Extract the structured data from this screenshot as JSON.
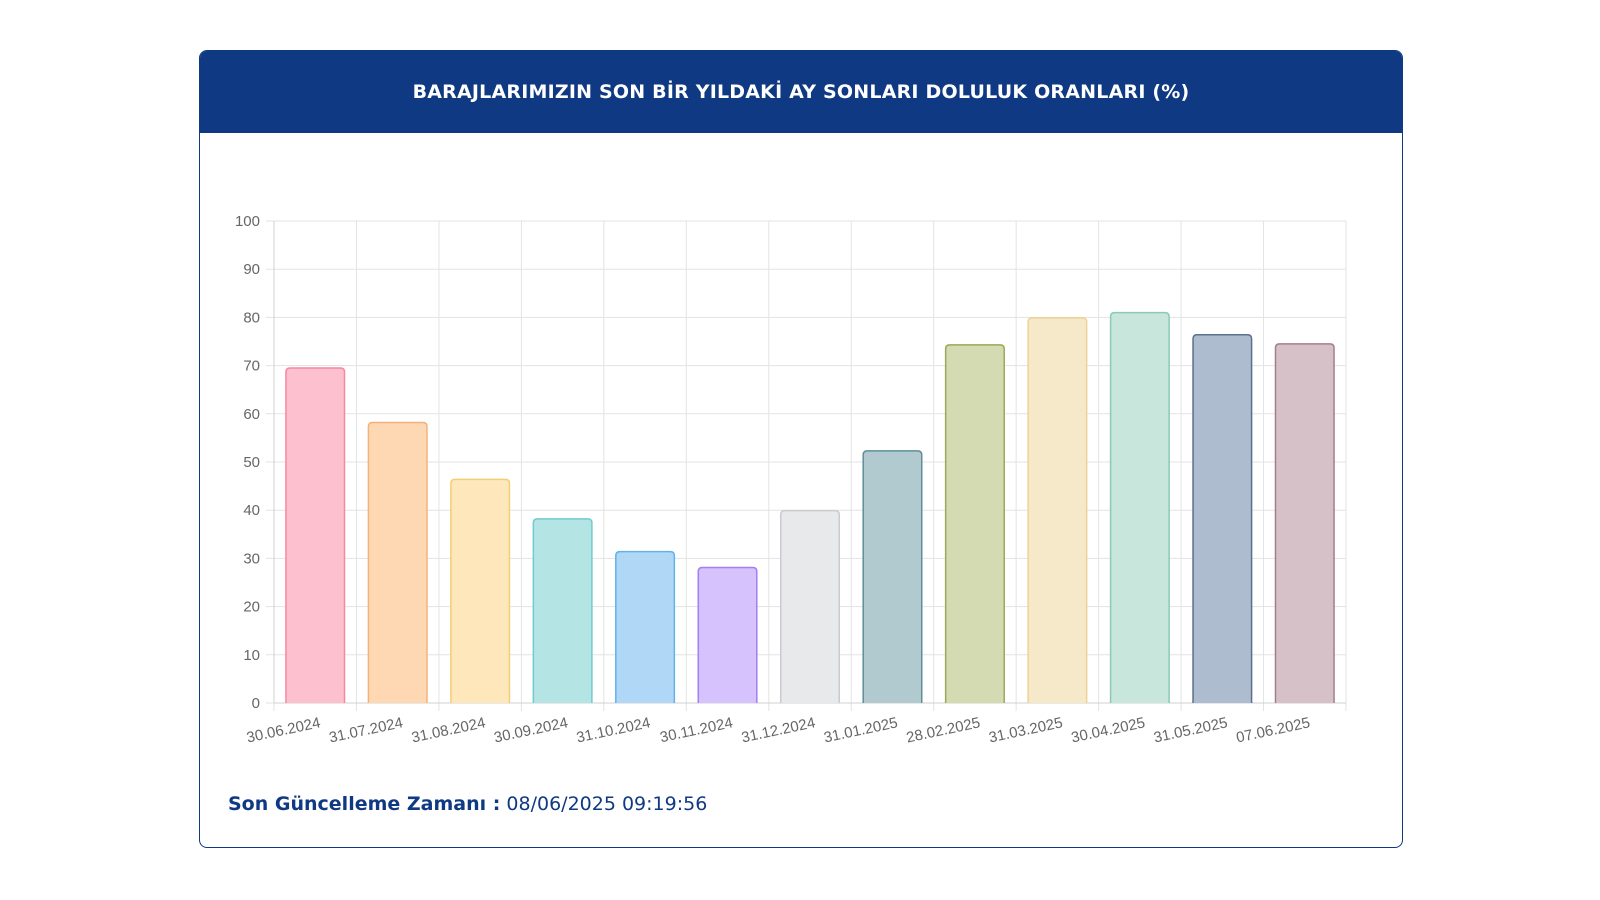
{
  "panel": {
    "title": "BARAJLARIMIZIN SON BİR YILDAKİ AY SONLARI DOLULUK ORANLARI (%)",
    "update_label": "Son Güncelleme Zamanı :",
    "update_value": "08/06/2025 09:19:56"
  },
  "colors": {
    "header_bg": "#0f3982",
    "footer_text": "#0f3982"
  },
  "chart_data": {
    "type": "bar",
    "title": "BARAJLARIMIZIN SON BİR YILDAKİ AY SONLARI DOLULUK ORANLARI (%)",
    "xlabel": "",
    "ylabel": "",
    "ylim": [
      0,
      100
    ],
    "yticks": [
      0,
      10,
      20,
      30,
      40,
      50,
      60,
      70,
      80,
      90,
      100
    ],
    "grid": true,
    "legend": "none",
    "categories": [
      "30.06.2024",
      "31.07.2024",
      "31.08.2024",
      "30.09.2024",
      "31.10.2024",
      "30.11.2024",
      "31.12.2024",
      "31.01.2025",
      "28.02.2025",
      "31.03.2025",
      "30.04.2025",
      "31.05.2025",
      "07.06.2025"
    ],
    "values": [
      69.5,
      58.2,
      46.4,
      38.2,
      31.4,
      28.1,
      39.9,
      52.3,
      74.3,
      79.9,
      81.0,
      76.4,
      74.5
    ],
    "bar_fill_colors": [
      "#fdc0cf",
      "#fdd8b2",
      "#fee8bb",
      "#b5e4e4",
      "#b0d8f6",
      "#d6c2fc",
      "#e8e9ea",
      "#b1cacf",
      "#d4dbb2",
      "#f6e9c9",
      "#c9e6dc",
      "#adbccf",
      "#d6c1c8"
    ],
    "bar_border_colors": [
      "#f5879f",
      "#f3b27a",
      "#f2cf74",
      "#6fcccc",
      "#5fb2ec",
      "#a57df4",
      "#c9cbcf",
      "#5f8e97",
      "#9aa85a",
      "#ecd395",
      "#8ccab2",
      "#5b6f8f",
      "#a67d8d"
    ]
  }
}
